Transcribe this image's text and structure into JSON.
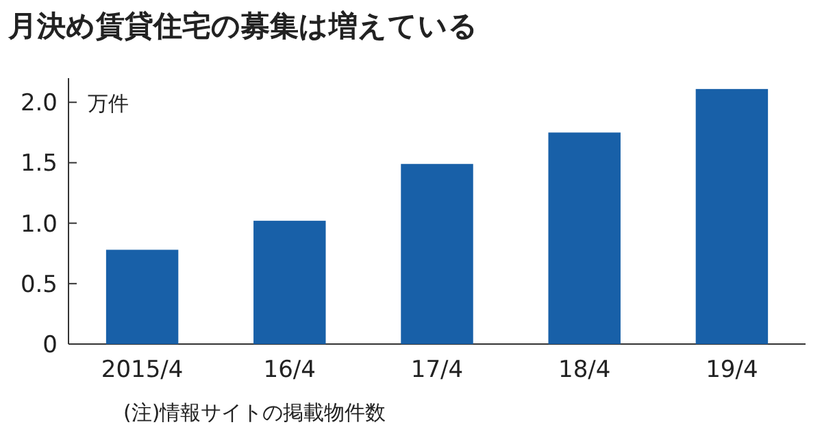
{
  "chart_data": {
    "type": "bar",
    "title": "月決め賃貸住宅の募集は増えている",
    "ylabel": "万件",
    "categories": [
      "2015/4",
      "16/4",
      "17/4",
      "18/4",
      "19/4"
    ],
    "values": [
      0.78,
      1.02,
      1.49,
      1.75,
      2.11
    ],
    "color": "#1860a8",
    "ylim": [
      0,
      2.2
    ],
    "yticks": [
      {
        "value": 0,
        "label": "0"
      },
      0.5,
      {
        "value": 1,
        "label": "1.0"
      },
      1.5,
      {
        "value": 2,
        "label": "2.0"
      }
    ],
    "annotations": [
      "(注)情報サイトの掲載物件数"
    ]
  }
}
